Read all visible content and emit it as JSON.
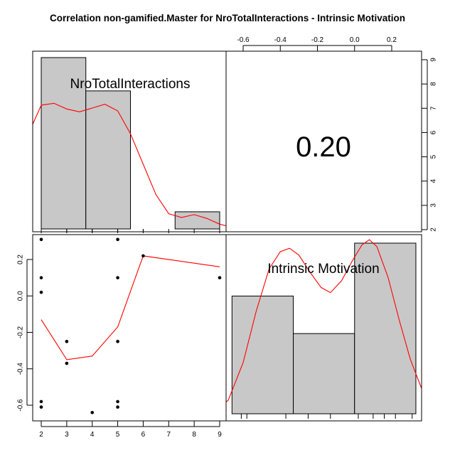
{
  "title": "Correlation non-gamified.Master for NroTotalInteractions - Intrinsic Motivation",
  "colors": {
    "bar_fill": "#c8c8c8",
    "density_line": "#ff0000",
    "loess_line": "#ff0000",
    "points": "#000000",
    "frame": "#000000"
  },
  "chart_data": [
    {
      "type": "bar",
      "panel": "top-left histogram",
      "label": "NroTotalInteractions",
      "bins": [
        [
          2,
          3.75
        ],
        [
          3.75,
          5.5
        ],
        [
          5.5,
          7.25
        ],
        [
          7.25,
          9
        ]
      ],
      "values": [
        9,
        7.25,
        0,
        0.9
      ],
      "density_curve": [
        [
          1.5,
          5.0
        ],
        [
          2,
          6.5
        ],
        [
          2.5,
          6.6
        ],
        [
          3,
          6.3
        ],
        [
          3.5,
          6.15
        ],
        [
          4,
          6.35
        ],
        [
          4.5,
          6.55
        ],
        [
          5,
          6.2
        ],
        [
          5.5,
          5.0
        ],
        [
          6,
          3.4
        ],
        [
          6.5,
          1.8
        ],
        [
          7,
          0.8
        ],
        [
          7.5,
          0.6
        ],
        [
          8,
          0.75
        ],
        [
          8.5,
          0.55
        ],
        [
          9,
          0.25
        ],
        [
          9.3,
          0.15
        ]
      ],
      "rug": [
        2,
        3,
        4,
        5,
        6,
        9
      ]
    },
    {
      "type": "table",
      "panel": "top-right correlation",
      "value": "0.20",
      "top_axis_ticks": [
        "-0.6",
        "-0.4",
        "-0.2",
        "0.0",
        "0.2"
      ],
      "right_axis_ticks": [
        "2",
        "3",
        "4",
        "5",
        "6",
        "7",
        "8",
        "9"
      ]
    },
    {
      "type": "scatter",
      "panel": "bottom-left scatter",
      "x_ticks": [
        "2",
        "3",
        "4",
        "5",
        "6",
        "7",
        "8",
        "9"
      ],
      "y_ticks": [
        "-0.6",
        "-0.4",
        "-0.2",
        "0.0",
        "0.2"
      ],
      "xlim": [
        1.8,
        9.2
      ],
      "ylim": [
        -0.66,
        0.34
      ],
      "points": [
        [
          2,
          0.31
        ],
        [
          2,
          0.1
        ],
        [
          2,
          0.02
        ],
        [
          2,
          -0.58
        ],
        [
          2,
          -0.61
        ],
        [
          3,
          -0.25
        ],
        [
          3,
          -0.37
        ],
        [
          4,
          -0.64
        ],
        [
          5,
          0.31
        ],
        [
          5,
          0.1
        ],
        [
          5,
          -0.25
        ],
        [
          5,
          -0.58
        ],
        [
          5,
          -0.61
        ],
        [
          6,
          0.22
        ],
        [
          9,
          0.1
        ]
      ],
      "loess_line": [
        [
          2,
          -0.13
        ],
        [
          3,
          -0.35
        ],
        [
          4,
          -0.33
        ],
        [
          5,
          -0.17
        ],
        [
          6,
          0.22
        ],
        [
          9,
          0.16
        ]
      ]
    },
    {
      "type": "bar",
      "panel": "bottom-right histogram",
      "label": "Intrinsic Motivation",
      "bins": [
        [
          -0.66,
          -0.33
        ],
        [
          -0.33,
          0.0
        ],
        [
          0.0,
          0.33
        ]
      ],
      "values": [
        0.69,
        0.47,
        1.0
      ],
      "density_curve": [
        [
          -0.73,
          0.03
        ],
        [
          -0.68,
          0.08
        ],
        [
          -0.6,
          0.3
        ],
        [
          -0.53,
          0.6
        ],
        [
          -0.46,
          0.85
        ],
        [
          -0.4,
          0.95
        ],
        [
          -0.35,
          0.97
        ],
        [
          -0.3,
          0.93
        ],
        [
          -0.24,
          0.83
        ],
        [
          -0.18,
          0.74
        ],
        [
          -0.13,
          0.71
        ],
        [
          -0.07,
          0.78
        ],
        [
          -0.01,
          0.9
        ],
        [
          0.04,
          0.99
        ],
        [
          0.08,
          1.02
        ],
        [
          0.12,
          0.98
        ],
        [
          0.18,
          0.8
        ],
        [
          0.24,
          0.55
        ],
        [
          0.3,
          0.32
        ],
        [
          0.36,
          0.15
        ]
      ],
      "rug": [
        -0.61,
        -0.58,
        -0.37,
        -0.25,
        -0.13,
        0.02,
        0.1,
        0.16,
        0.22,
        0.31
      ]
    }
  ]
}
